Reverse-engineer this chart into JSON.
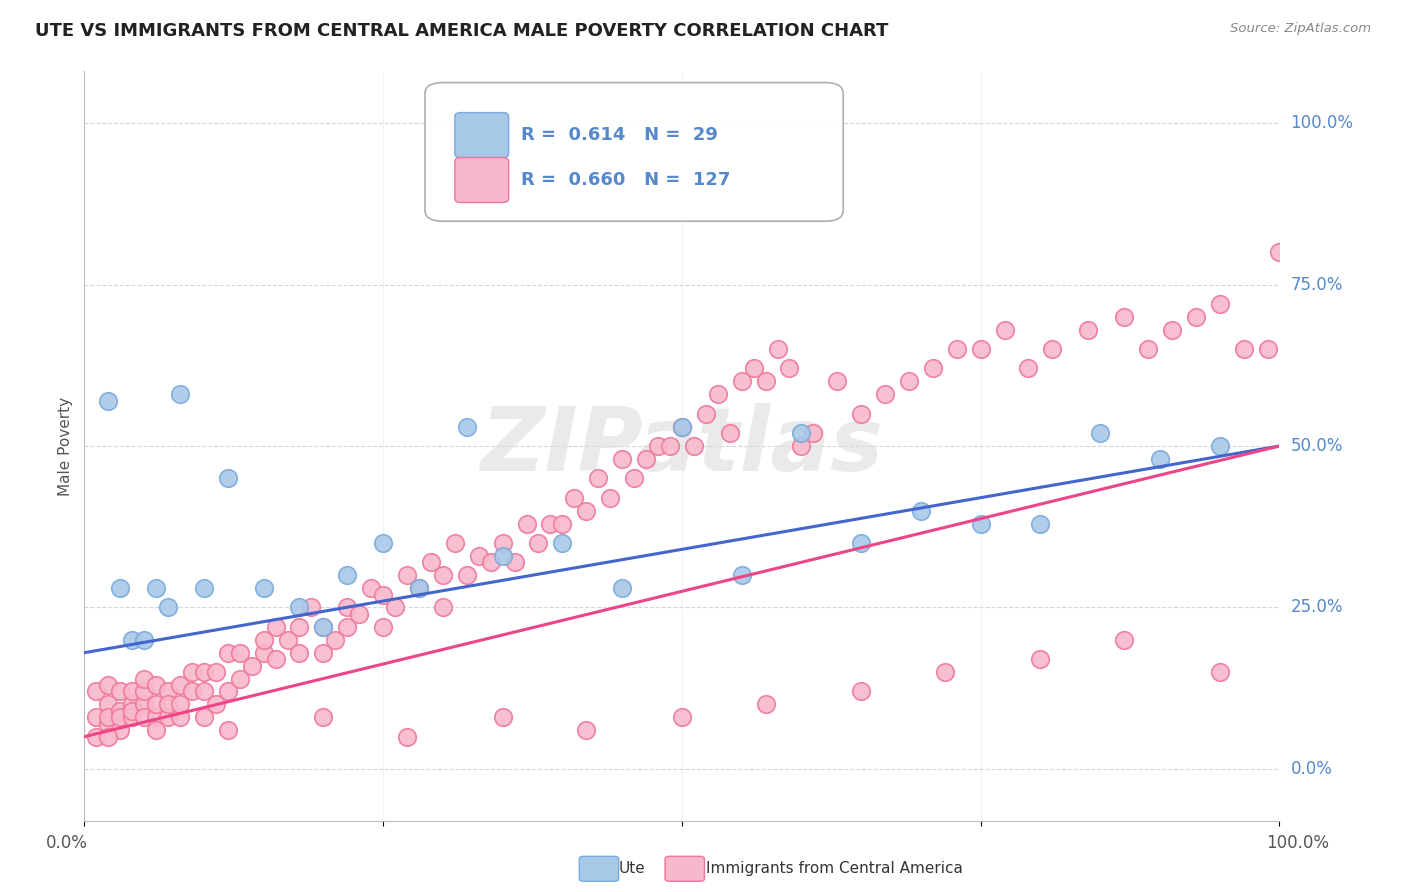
{
  "title": "UTE VS IMMIGRANTS FROM CENTRAL AMERICA MALE POVERTY CORRELATION CHART",
  "source": "Source: ZipAtlas.com",
  "ylabel": "Male Poverty",
  "ytick_vals": [
    0,
    25,
    50,
    75,
    100
  ],
  "xlim": [
    0,
    100
  ],
  "ylim": [
    -8,
    108
  ],
  "ute_color": "#a8c8e8",
  "ute_edge_color": "#7aaadd",
  "imm_color": "#f8b8cc",
  "imm_edge_color": "#ee7799",
  "ute_line_color": "#4466cc",
  "imm_line_color": "#ee4488",
  "legend_R_ute": "0.614",
  "legend_N_ute": "29",
  "legend_R_imm": "0.660",
  "legend_N_imm": "127",
  "watermark": "ZIPatlas",
  "background_color": "#ffffff",
  "grid_color": "#cccccc",
  "right_tick_color": "#5588cc",
  "ute_x": [
    2,
    3,
    4,
    5,
    6,
    7,
    8,
    10,
    12,
    15,
    18,
    20,
    22,
    25,
    28,
    32,
    35,
    40,
    45,
    50,
    55,
    60,
    65,
    70,
    75,
    80,
    85,
    90,
    95
  ],
  "ute_y": [
    57,
    28,
    20,
    20,
    28,
    25,
    58,
    28,
    45,
    28,
    25,
    22,
    30,
    35,
    28,
    53,
    33,
    35,
    28,
    53,
    30,
    52,
    35,
    40,
    38,
    38,
    52,
    48,
    50
  ],
  "imm_x": [
    1,
    1,
    1,
    2,
    2,
    2,
    2,
    3,
    3,
    3,
    3,
    4,
    4,
    4,
    4,
    5,
    5,
    5,
    5,
    6,
    6,
    6,
    7,
    7,
    7,
    8,
    8,
    8,
    9,
    9,
    10,
    10,
    10,
    11,
    11,
    12,
    12,
    13,
    13,
    14,
    15,
    15,
    16,
    16,
    17,
    18,
    18,
    19,
    20,
    20,
    21,
    22,
    22,
    23,
    24,
    25,
    25,
    26,
    27,
    28,
    29,
    30,
    30,
    31,
    32,
    33,
    34,
    35,
    36,
    37,
    38,
    39,
    40,
    41,
    42,
    43,
    44,
    45,
    46,
    47,
    48,
    49,
    50,
    51,
    52,
    53,
    54,
    55,
    56,
    57,
    58,
    59,
    60,
    61,
    63,
    65,
    67,
    69,
    71,
    73,
    75,
    77,
    79,
    81,
    84,
    87,
    89,
    91,
    93,
    95,
    97,
    99,
    100,
    95,
    87,
    80,
    72,
    65,
    57,
    50,
    42,
    35,
    27,
    20,
    12,
    6,
    2
  ],
  "imm_y": [
    8,
    5,
    12,
    7,
    10,
    13,
    8,
    6,
    9,
    12,
    8,
    10,
    8,
    12,
    9,
    10,
    8,
    12,
    14,
    8,
    10,
    13,
    8,
    12,
    10,
    8,
    13,
    10,
    12,
    15,
    8,
    12,
    15,
    10,
    15,
    12,
    18,
    14,
    18,
    16,
    18,
    20,
    17,
    22,
    20,
    22,
    18,
    25,
    18,
    22,
    20,
    22,
    25,
    24,
    28,
    22,
    27,
    25,
    30,
    28,
    32,
    25,
    30,
    35,
    30,
    33,
    32,
    35,
    32,
    38,
    35,
    38,
    38,
    42,
    40,
    45,
    42,
    48,
    45,
    48,
    50,
    50,
    53,
    50,
    55,
    58,
    52,
    60,
    62,
    60,
    65,
    62,
    50,
    52,
    60,
    55,
    58,
    60,
    62,
    65,
    65,
    68,
    62,
    65,
    68,
    70,
    65,
    68,
    70,
    72,
    65,
    65,
    80,
    15,
    20,
    17,
    15,
    12,
    10,
    8,
    6,
    8,
    5,
    8,
    6,
    6,
    5
  ]
}
